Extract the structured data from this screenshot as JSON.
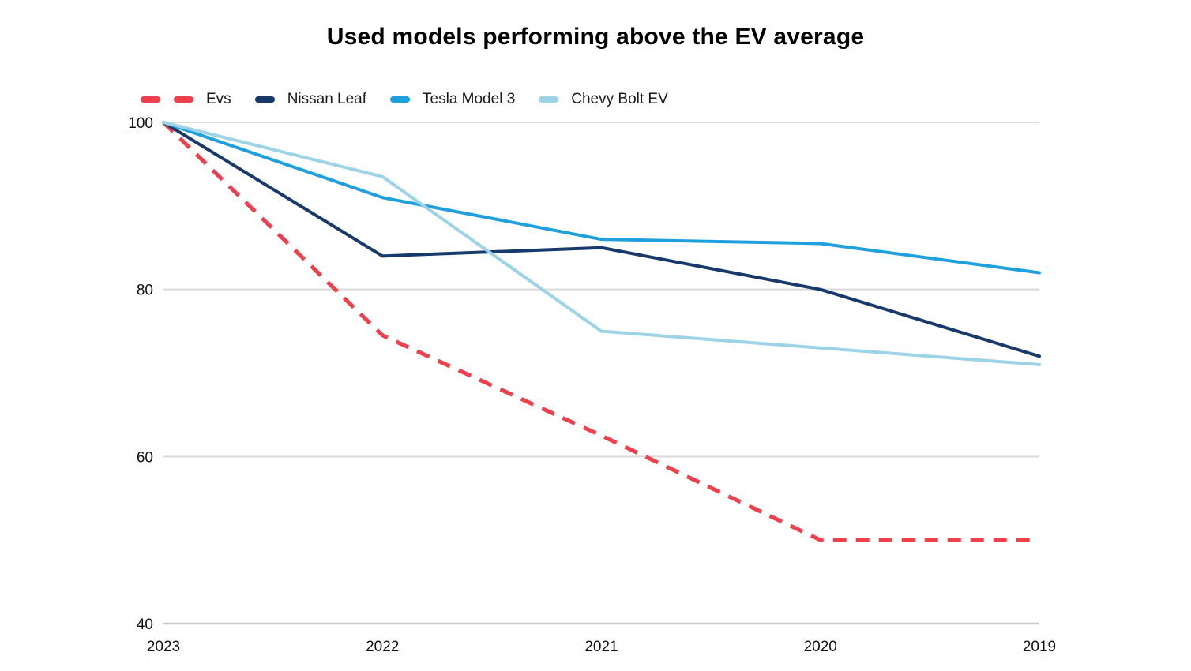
{
  "chart_data": {
    "type": "line",
    "title": "Used models performing above the EV average",
    "x_labels": [
      "2023",
      "2022",
      "2021",
      "2020",
      "2019"
    ],
    "y_ticks": [
      100,
      80,
      60,
      40
    ],
    "ylim": [
      40,
      100
    ],
    "grid": true,
    "legend_position": "top-left",
    "gridline_color": "#D9D9D9",
    "axis_line_color": "#C8C8C8",
    "text_color": "#111111",
    "series": [
      {
        "name": "Evs",
        "color": "#F03E4A",
        "style": "dashed",
        "values": [
          100,
          74.5,
          62.5,
          50,
          50
        ]
      },
      {
        "name": "Nissan Leaf",
        "color": "#17396B",
        "style": "solid",
        "values": [
          100,
          84,
          85,
          80,
          72
        ]
      },
      {
        "name": "Tesla Model 3",
        "color": "#1FA0DE",
        "style": "solid",
        "values": [
          100,
          91,
          86,
          85.5,
          82
        ]
      },
      {
        "name": "Chevy Bolt EV",
        "color": "#9CD3E6",
        "style": "solid",
        "values": [
          100,
          93.5,
          75,
          73,
          71
        ]
      }
    ]
  }
}
